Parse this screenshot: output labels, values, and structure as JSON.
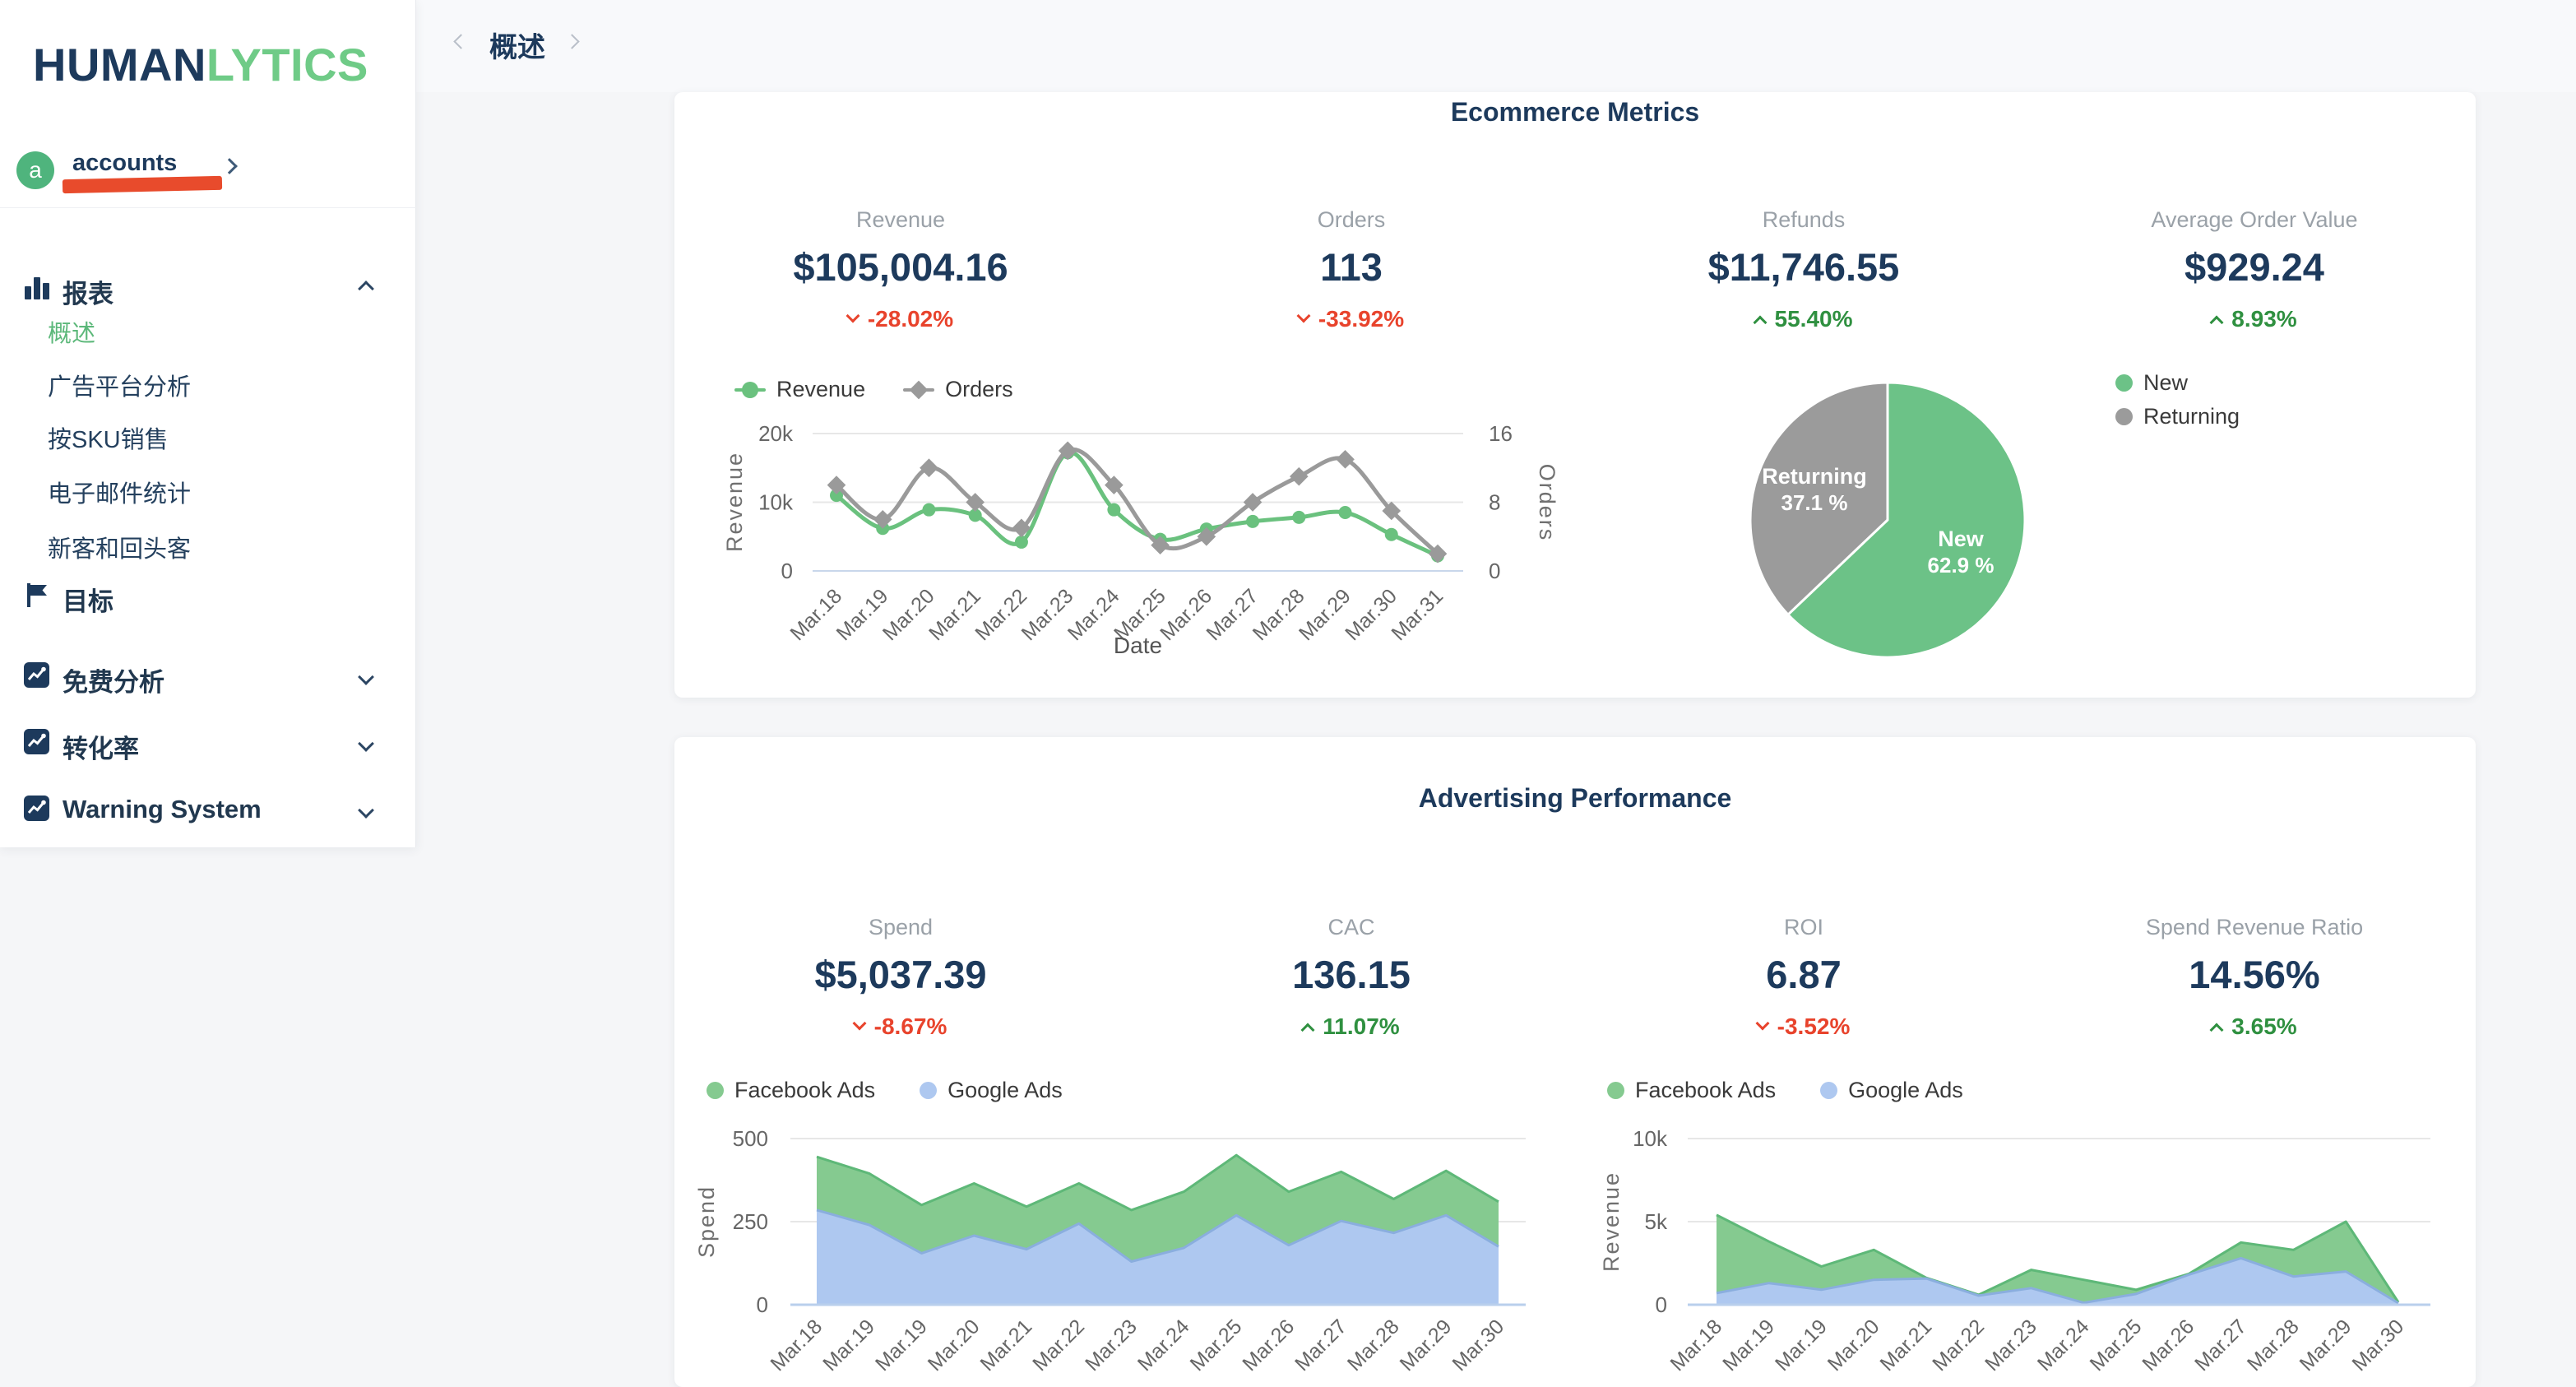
{
  "brand": {
    "part1": "HUMAN",
    "part2": "LYTICS"
  },
  "theme": {
    "navy": "#1d3a5c",
    "accent_green": "#6fcb87",
    "positive": "#2f9040",
    "negative": "#e8432c"
  },
  "account": {
    "initial": "a",
    "name": "accounts"
  },
  "breadcrumb": {
    "label": "概述"
  },
  "sidebar": {
    "reports": {
      "label": "报表",
      "items": [
        {
          "label": "概述",
          "active": true
        },
        {
          "label": "广告平台分析"
        },
        {
          "label": "按SKU销售"
        },
        {
          "label": "电子邮件统计"
        },
        {
          "label": "新客和回头客"
        }
      ]
    },
    "goals": {
      "label": "目标"
    },
    "free_analysis": {
      "label": "免费分析"
    },
    "conversion": {
      "label": "转化率"
    },
    "warning": {
      "label": "Warning System"
    }
  },
  "cards": {
    "ecommerce": {
      "title": "Ecommerce Metrics",
      "kpis": [
        {
          "label": "Revenue",
          "value": "$105,004.16",
          "delta": "-28.02%",
          "dir": "down"
        },
        {
          "label": "Orders",
          "value": "113",
          "delta": "-33.92%",
          "dir": "down"
        },
        {
          "label": "Refunds",
          "value": "$11,746.55",
          "delta": "55.40%",
          "dir": "up"
        },
        {
          "label": "Average Order Value",
          "value": "$929.24",
          "delta": "8.93%",
          "dir": "up"
        }
      ]
    },
    "advertising": {
      "title": "Advertising Performance",
      "kpis": [
        {
          "label": "Spend",
          "value": "$5,037.39",
          "delta": "-8.67%",
          "dir": "down"
        },
        {
          "label": "CAC",
          "value": "136.15",
          "delta": "11.07%",
          "dir": "up"
        },
        {
          "label": "ROI",
          "value": "6.87",
          "delta": "-3.52%",
          "dir": "down"
        },
        {
          "label": "Spend Revenue Ratio",
          "value": "14.56%",
          "delta": "3.65%",
          "dir": "up"
        }
      ]
    }
  },
  "chart_data": [
    {
      "id": "revenue-orders",
      "type": "line",
      "xlabel": "Date",
      "categories": [
        "Mar.18",
        "Mar.19",
        "Mar.20",
        "Mar.21",
        "Mar.22",
        "Mar.23",
        "Mar.24",
        "Mar.25",
        "Mar.26",
        "Mar.27",
        "Mar.28",
        "Mar.29",
        "Mar.30",
        "Mar.31"
      ],
      "series": [
        {
          "name": "Revenue",
          "axis": "left",
          "color": "#6ac17e",
          "marker": "circle",
          "values": [
            11000,
            6200,
            8900,
            8100,
            4200,
            17200,
            8900,
            4600,
            6100,
            7200,
            7800,
            8500,
            5300,
            2200
          ]
        },
        {
          "name": "Orders",
          "axis": "right",
          "color": "#9a9a9a",
          "marker": "diamond",
          "values": [
            10,
            6,
            12,
            8,
            5,
            14,
            10,
            3,
            4,
            8,
            11,
            13,
            7,
            2
          ]
        }
      ],
      "left_axis": {
        "title": "Revenue",
        "max": 20000,
        "ticks": [
          {
            "v": 0,
            "label": "0"
          },
          {
            "v": 10000,
            "label": "10k"
          },
          {
            "v": 20000,
            "label": "20k"
          }
        ]
      },
      "right_axis": {
        "title": "Orders",
        "max": 16,
        "ticks": [
          {
            "v": 0,
            "label": "0"
          },
          {
            "v": 8,
            "label": "8"
          },
          {
            "v": 16,
            "label": "16"
          }
        ]
      },
      "grid": true
    },
    {
      "id": "new-vs-returning",
      "type": "pie",
      "unit": "%",
      "slices": [
        {
          "label": "New",
          "value": 62.9,
          "color": "#6cc287"
        },
        {
          "label": "Returning",
          "value": 37.1,
          "color": "#9b9b9b"
        }
      ],
      "legend_position": "right"
    },
    {
      "id": "ad-spend",
      "type": "area",
      "ylabel": "Spend",
      "categories": [
        "Mar.18",
        "Mar.19",
        "Mar.19",
        "Mar.20",
        "Mar.21",
        "Mar.22",
        "Mar.23",
        "Mar.24",
        "Mar.25",
        "Mar.26",
        "Mar.27",
        "Mar.28",
        "Mar.29",
        "Mar.30"
      ],
      "series": [
        {
          "name": "Facebook Ads",
          "color": "#85ca90",
          "line": "#5eb878",
          "values": [
            445,
            395,
            300,
            365,
            295,
            365,
            285,
            340,
            450,
            340,
            400,
            318,
            403,
            310
          ]
        },
        {
          "name": "Google Ads",
          "color": "#aec8f0",
          "line": "#8aaede",
          "values": [
            285,
            240,
            155,
            208,
            167,
            244,
            130,
            171,
            269,
            179,
            252,
            216,
            269,
            175
          ]
        }
      ],
      "y_axis": {
        "max": 500,
        "ticks": [
          {
            "v": 0,
            "label": "0"
          },
          {
            "v": 250,
            "label": "250"
          },
          {
            "v": 500,
            "label": "500"
          }
        ]
      }
    },
    {
      "id": "ad-revenue",
      "type": "area",
      "ylabel": "Revenue",
      "categories": [
        "Mar.18",
        "Mar.19",
        "Mar.19",
        "Mar.20",
        "Mar.21",
        "Mar.22",
        "Mar.23",
        "Mar.24",
        "Mar.25",
        "Mar.26",
        "Mar.27",
        "Mar.28",
        "Mar.29",
        "Mar.30"
      ],
      "series": [
        {
          "name": "Facebook Ads",
          "color": "#85ca90",
          "line": "#5eb878",
          "values": [
            5400,
            3800,
            2300,
            3300,
            1620,
            600,
            2100,
            1500,
            900,
            1850,
            3750,
            3300,
            5000,
            150
          ]
        },
        {
          "name": "Google Ads",
          "color": "#aec8f0",
          "line": "#8aaede",
          "values": [
            700,
            1300,
            900,
            1500,
            1580,
            550,
            1000,
            120,
            650,
            1800,
            2800,
            1700,
            2000,
            100
          ]
        }
      ],
      "y_axis": {
        "max": 10000,
        "ticks": [
          {
            "v": 0,
            "label": "0"
          },
          {
            "v": 5000,
            "label": "5k"
          },
          {
            "v": 10000,
            "label": "10k"
          }
        ]
      }
    }
  ]
}
